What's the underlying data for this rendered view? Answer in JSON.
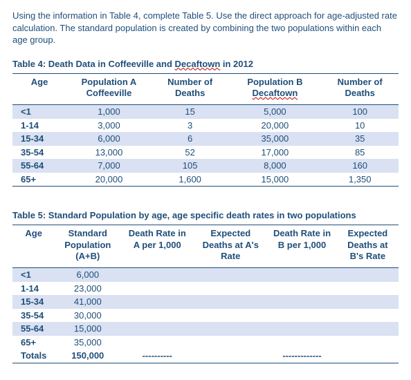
{
  "intro_text": "Using the information in Table 4, complete Table 5. Use the direct approach for age-adjusted rate calculation. The standard population is created by combining the two populations within each age group.",
  "table4": {
    "title_prefix": "Table 4: Death Data in Coffeeville  and ",
    "title_wavy": "Decaftown",
    "title_suffix": " in 2012",
    "headers": {
      "age": "Age",
      "popA_line1": "Population A",
      "popA_line2": "Coffeeville",
      "deathsA_line1": "Number of",
      "deathsA_line2": "Deaths",
      "popB_line1": "Population B",
      "popB_line2_wavy": "Decaftown",
      "deathsB": "Number of Deaths"
    },
    "rows": [
      {
        "age": "<1",
        "popA": "1,000",
        "dA": "15",
        "popB": "5,000",
        "dB": "100",
        "band": true
      },
      {
        "age": "1-14",
        "popA": "3,000",
        "dA": "3",
        "popB": "20,000",
        "dB": "10",
        "band": false
      },
      {
        "age": "15-34",
        "popA": "6,000",
        "dA": "6",
        "popB": "35,000",
        "dB": "35",
        "band": true
      },
      {
        "age": "35-54",
        "popA": "13,000",
        "dA": "52",
        "popB": "17,000",
        "dB": "85",
        "band": false
      },
      {
        "age": "55-64",
        "popA": "7,000",
        "dA": "105",
        "popB": "8,000",
        "dB": "160",
        "band": true
      },
      {
        "age": "65+",
        "popA": "20,000",
        "dA": "1,600",
        "popB": "15,000",
        "dB": "1,350",
        "band": false
      }
    ]
  },
  "table5": {
    "title": "Table 5: Standard Population by age, age specific death rates in two populations",
    "headers": {
      "age": "Age",
      "stdpop_line1": "Standard",
      "stdpop_line2": "Population",
      "stdpop_line3": "(A+B)",
      "rateA_line1": "Death Rate in",
      "rateA_line2": "A per 1,000",
      "expA_line1": "Expected",
      "expA_line2": "Deaths at A's",
      "expA_line3": "Rate",
      "rateB_line1": "Death Rate in",
      "rateB_line2": "B per 1,000",
      "expB_line1": "Expected",
      "expB_line2": "Deaths at",
      "expB_line3": "B's Rate"
    },
    "rows": [
      {
        "age": "<1",
        "std": "6,000",
        "band": true
      },
      {
        "age": "1-14",
        "std": "23,000",
        "band": false
      },
      {
        "age": "15-34",
        "std": "41,000",
        "band": true
      },
      {
        "age": "35-54",
        "std": "30,000",
        "band": false
      },
      {
        "age": "55-64",
        "std": "15,000",
        "band": true
      },
      {
        "age": "65+",
        "std": "35,000",
        "band": false
      }
    ],
    "totals": {
      "label": "Totals",
      "std": "150,000",
      "dashA": "----------",
      "dashB": "-------------"
    }
  },
  "col_widths": {
    "t4": [
      "14%",
      "22%",
      "20%",
      "24%",
      "20%"
    ],
    "t5": [
      "11%",
      "17%",
      "19%",
      "19%",
      "18%",
      "16%"
    ]
  }
}
